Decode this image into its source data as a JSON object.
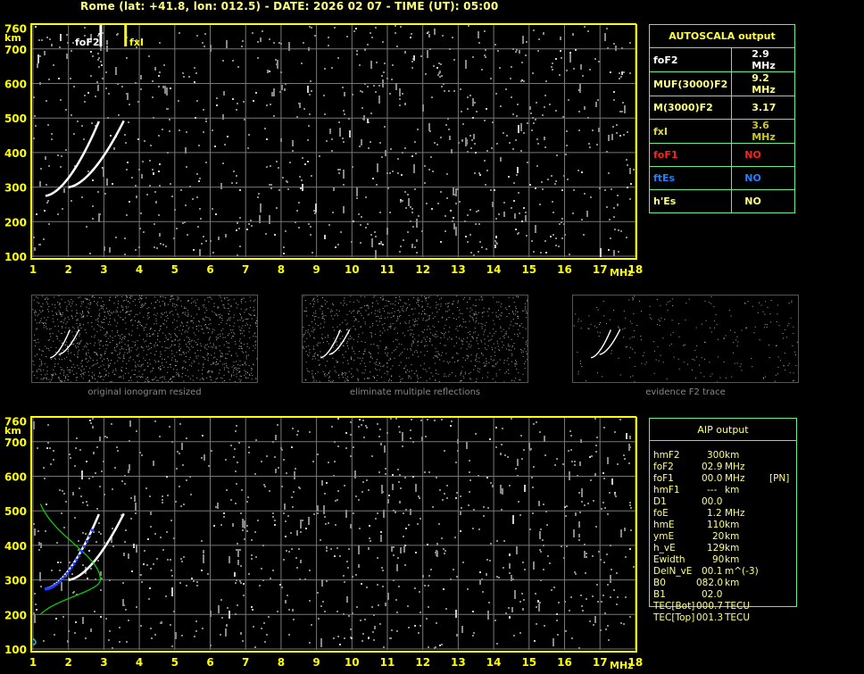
{
  "title": "Rome (lat: +41.8, lon: 012.5) - DATE: 2026 02 07 - TIME (UT): 05:00",
  "axes": {
    "y_unit": "km",
    "x_unit": "MHz",
    "y_ticks": [
      "760",
      "700",
      "600",
      "500",
      "400",
      "300",
      "200",
      "100"
    ],
    "x_ticks": [
      "1",
      "2",
      "3",
      "4",
      "5",
      "6",
      "7",
      "8",
      "9",
      "10",
      "11",
      "12",
      "13",
      "14",
      "15",
      "16",
      "17",
      "18"
    ]
  },
  "markers": {
    "fof2_label": "foF2",
    "fxi_label": "fxI",
    "fof2_mhz": 2.9,
    "fxi_mhz": 3.6
  },
  "autoscala": {
    "title": "AUTOSCALA output",
    "rows": [
      {
        "label": "foF2",
        "value": "2.9 MHz",
        "color": "#ffffff"
      },
      {
        "label": "MUF(3000)F2",
        "value": "9.2 MHz",
        "color": "#ffff80"
      },
      {
        "label": "M(3000)F2",
        "value": "3.17",
        "color": "#ffff80"
      },
      {
        "label": "fxI",
        "value": "3.6 MHz",
        "color": "#e0e020",
        "vcolor": "#c8c820"
      },
      {
        "label": "foF1",
        "value": "NO",
        "color": "#ff2020"
      },
      {
        "label": "ftEs",
        "value": "NO",
        "color": "#2080ff"
      },
      {
        "label": "h'Es",
        "value": "NO",
        "color": "#ffff80"
      }
    ]
  },
  "thumbnails": [
    {
      "label": "original ionogram resized"
    },
    {
      "label": "eliminate multiple reflections"
    },
    {
      "label": "evidence F2 trace"
    }
  ],
  "aip": {
    "title": "AIP output",
    "rows": [
      [
        "hmF2",
        "300",
        "km",
        ""
      ],
      [
        "foF2",
        "02.9",
        "MHz",
        ""
      ],
      [
        "foF1",
        "00.0",
        "MHz",
        "[PN]"
      ],
      [
        "hmF1",
        "---",
        "km",
        ""
      ],
      [
        "D1",
        "00.0",
        "",
        ""
      ],
      [
        "foE",
        "1.2",
        "MHz",
        ""
      ],
      [
        "hmE",
        "110",
        "km",
        ""
      ],
      [
        "ymE",
        "20",
        "km",
        ""
      ],
      [
        "h_vE",
        "129",
        "km",
        ""
      ],
      [
        "Ewidth",
        "90",
        "km",
        ""
      ],
      [
        "DelN_vE",
        "00.1",
        "m^(-3)",
        ""
      ],
      [
        "B0",
        "082.0",
        "km",
        ""
      ],
      [
        "B1",
        "02.0",
        "",
        ""
      ],
      [
        "TEC[Bot]",
        "000.7",
        "TECU",
        ""
      ],
      [
        "TEC[Top]",
        "001.3",
        "TECU",
        ""
      ]
    ]
  },
  "colors": {
    "axis": "#ffff00",
    "grid": "#777777",
    "table_border": "#66ee88",
    "profile": "#00dd00",
    "trace_points": "#2040ff"
  }
}
